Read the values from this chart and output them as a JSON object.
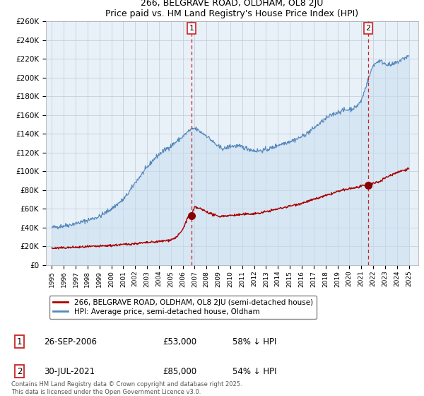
{
  "title": "266, BELGRAVE ROAD, OLDHAM, OL8 2JU",
  "subtitle": "Price paid vs. HM Land Registry's House Price Index (HPI)",
  "background_color": "#ffffff",
  "plot_bg_color": "#e8f0f8",
  "grid_color": "#c0c8d8",
  "line_color_hpi": "#5588bb",
  "fill_color_hpi": "#c8ddf0",
  "line_color_price": "#aa0000",
  "dot_color_price": "#880000",
  "transaction1": {
    "date": "26-SEP-2006",
    "price": 53000,
    "pct": "58% ↓ HPI",
    "year": 2006.74
  },
  "transaction2": {
    "date": "30-JUL-2021",
    "price": 85000,
    "pct": "54% ↓ HPI",
    "year": 2021.58
  },
  "legend1": "266, BELGRAVE ROAD, OLDHAM, OL8 2JU (semi-detached house)",
  "legend2": "HPI: Average price, semi-detached house, Oldham",
  "footer": "Contains HM Land Registry data © Crown copyright and database right 2025.\nThis data is licensed under the Open Government Licence v3.0.",
  "ylim": [
    0,
    260000
  ],
  "yticks": [
    0,
    20000,
    40000,
    60000,
    80000,
    100000,
    120000,
    140000,
    160000,
    180000,
    200000,
    220000,
    240000,
    260000
  ],
  "xlim_start": 1994.5,
  "xlim_end": 2025.8,
  "hpi_years": [
    1995.0,
    1995.5,
    1996.0,
    1996.5,
    1997.0,
    1997.5,
    1998.0,
    1998.5,
    1999.0,
    1999.5,
    2000.0,
    2000.5,
    2001.0,
    2001.5,
    2002.0,
    2002.5,
    2003.0,
    2003.5,
    2004.0,
    2004.5,
    2005.0,
    2005.5,
    2006.0,
    2006.5,
    2007.0,
    2007.5,
    2008.0,
    2008.5,
    2009.0,
    2009.5,
    2010.0,
    2010.5,
    2011.0,
    2011.5,
    2012.0,
    2012.5,
    2013.0,
    2013.5,
    2014.0,
    2014.5,
    2015.0,
    2015.5,
    2016.0,
    2016.5,
    2017.0,
    2017.5,
    2018.0,
    2018.5,
    2019.0,
    2019.5,
    2020.0,
    2020.5,
    2021.0,
    2021.5,
    2022.0,
    2022.5,
    2023.0,
    2023.5,
    2024.0,
    2024.5,
    2025.0
  ],
  "hpi_prices": [
    40000,
    41000,
    42000,
    43000,
    44500,
    46000,
    48000,
    50000,
    52000,
    56000,
    60000,
    65000,
    70000,
    78000,
    88000,
    96000,
    104000,
    112000,
    118000,
    123000,
    127000,
    132000,
    137000,
    143000,
    146000,
    142000,
    138000,
    132000,
    126000,
    124000,
    127000,
    127000,
    126000,
    124000,
    122000,
    122000,
    123000,
    125000,
    128000,
    130000,
    132000,
    134000,
    137000,
    141000,
    146000,
    151000,
    156000,
    160000,
    163000,
    165000,
    166000,
    168000,
    175000,
    195000,
    213000,
    218000,
    215000,
    213000,
    216000,
    220000,
    223000
  ],
  "price_years": [
    1995.0,
    1995.5,
    1996.0,
    1996.5,
    1997.0,
    1997.5,
    1998.0,
    1998.5,
    1999.0,
    1999.5,
    2000.0,
    2000.5,
    2001.0,
    2001.5,
    2002.0,
    2002.5,
    2003.0,
    2003.5,
    2004.0,
    2004.5,
    2005.0,
    2005.5,
    2006.0,
    2006.5,
    2006.74,
    2007.0,
    2007.5,
    2008.0,
    2008.5,
    2009.0,
    2009.5,
    2010.0,
    2010.5,
    2011.0,
    2011.5,
    2012.0,
    2012.5,
    2013.0,
    2013.5,
    2014.0,
    2014.5,
    2015.0,
    2015.5,
    2016.0,
    2016.5,
    2017.0,
    2017.5,
    2018.0,
    2018.5,
    2019.0,
    2019.5,
    2020.0,
    2020.5,
    2021.0,
    2021.5,
    2021.58,
    2022.0,
    2022.5,
    2023.0,
    2023.5,
    2024.0,
    2024.5,
    2025.0
  ],
  "price_values": [
    18000,
    18200,
    18500,
    18800,
    19000,
    19300,
    19600,
    19900,
    20200,
    20600,
    21000,
    21500,
    22000,
    22500,
    23000,
    23500,
    24000,
    24500,
    25200,
    26000,
    27000,
    30000,
    38000,
    53000,
    53000,
    62000,
    60000,
    57000,
    54000,
    52000,
    52500,
    53000,
    53500,
    54000,
    54500,
    55000,
    55500,
    57000,
    58500,
    60000,
    61500,
    63000,
    64500,
    66000,
    68000,
    70000,
    72000,
    74000,
    76000,
    78500,
    80000,
    81500,
    82500,
    84000,
    85000,
    85000,
    87000,
    89000,
    93000,
    96000,
    99000,
    101000,
    103000
  ]
}
